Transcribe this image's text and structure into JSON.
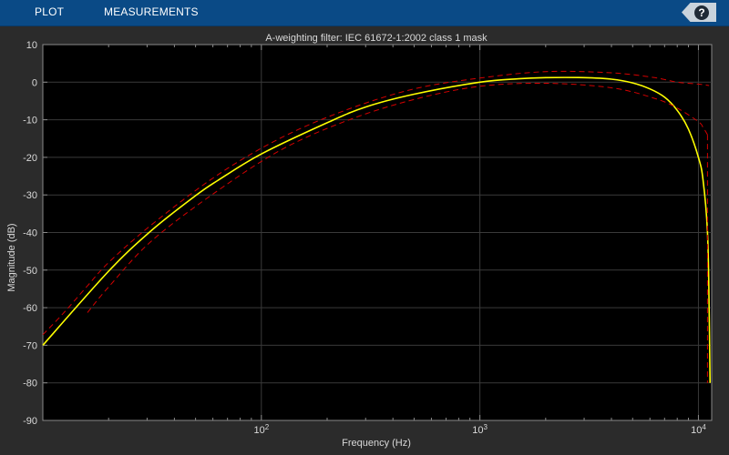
{
  "toolstrip": {
    "tabs": [
      {
        "label": "PLOT"
      },
      {
        "label": "MEASUREMENTS"
      }
    ],
    "help_glyph": "?",
    "help_icon": "question-mark-icon"
  },
  "colors": {
    "toolstrip": "#0a4a86",
    "figure_bg": "#2b2b2b",
    "axes_bg": "#000000",
    "response": "#ffff00",
    "mask": "#d40000"
  },
  "chart_data": {
    "type": "line",
    "title": "A-weighting filter: IEC 61672-1:2002 class 1 mask",
    "xlabel": "Frequency (Hz)",
    "ylabel": "Magnitude (dB)",
    "xscale": "log",
    "xlim": [
      10,
      11500
    ],
    "ylim": [
      -90,
      10
    ],
    "yticks": [
      10,
      0,
      -10,
      -20,
      -30,
      -40,
      -50,
      -60,
      -70,
      -80,
      -90
    ],
    "ytick_labels": [
      "10",
      "0",
      "-10",
      "-20",
      "-30",
      "-40",
      "-50",
      "-60",
      "-70",
      "-80",
      "-90"
    ],
    "xticks": [
      {
        "value": 100,
        "base": "10",
        "exp": "2"
      },
      {
        "value": 1000,
        "base": "10",
        "exp": "3"
      },
      {
        "value": 10000,
        "base": "10",
        "exp": "4"
      }
    ],
    "grid": true,
    "series": [
      {
        "role": "response",
        "style": "solid",
        "x": [
          10,
          20,
          31.5,
          50,
          63,
          100,
          200,
          300,
          500,
          1000,
          1500,
          2000,
          3000,
          4000,
          5000,
          6000,
          7000,
          8000,
          9000,
          10000,
          10500,
          11000,
          11200,
          11300
        ],
        "y": [
          -70,
          -50.3,
          -39.4,
          -30.2,
          -26.2,
          -19.1,
          -10.8,
          -6.6,
          -3.2,
          0,
          0.9,
          1.2,
          1.2,
          0.8,
          -0.2,
          -1.8,
          -4.0,
          -7.5,
          -12.5,
          -20,
          -26,
          -40,
          -60,
          -80
        ]
      },
      {
        "role": "mask-upper",
        "style": "dashed",
        "x": [
          10,
          12.5,
          16,
          20,
          31.5,
          63,
          125,
          250,
          500,
          1000,
          2000,
          4000,
          6300,
          8000,
          10000,
          11200
        ],
        "y": [
          -67.2,
          -61.3,
          -54.2,
          -48.0,
          -37.9,
          -24.7,
          -14.6,
          -7.2,
          -1.8,
          1.1,
          2.8,
          2.5,
          1.2,
          0.0,
          -0.5,
          -0.9
        ]
      },
      {
        "role": "mask-lower",
        "style": "dashed",
        "x": [
          16,
          20,
          31.5,
          63,
          125,
          250,
          500,
          1000,
          2000,
          4000,
          6300,
          8000,
          10000,
          10500,
          11000
        ],
        "y": [
          -61.3,
          -54.5,
          -42.2,
          -28.9,
          -17.8,
          -10.1,
          -4.6,
          -1.1,
          -0.3,
          -1.5,
          -4.3,
          -6.9,
          -10.5,
          -12,
          -14
        ]
      },
      {
        "role": "mask-drop",
        "style": "dashed",
        "x": [
          11000,
          11000
        ],
        "y": [
          -14,
          -80
        ]
      }
    ]
  }
}
